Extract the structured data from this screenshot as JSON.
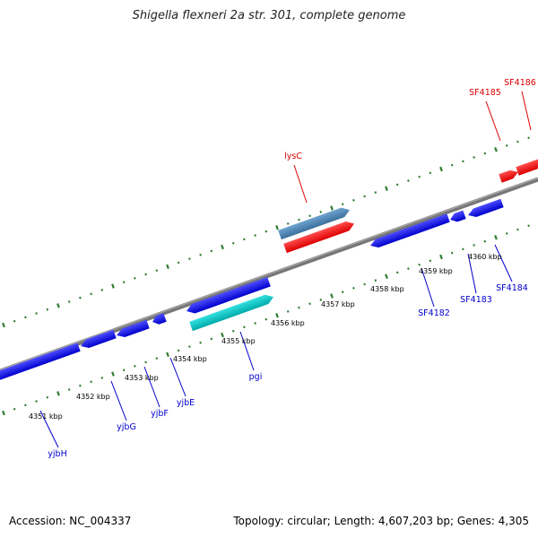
{
  "title": "Shigella flexneri 2a str. 301, complete genome",
  "footer": {
    "accession": "Accession: NC_004337",
    "topology": "Topology: circular; Length: 4,607,203 bp; Genes: 4,305"
  },
  "colors": {
    "forward_cds": "#ff0000",
    "reverse_cds": "#0000ee",
    "rna_or_other": "#00cccc",
    "highlight": "#4682b4",
    "backbone": "#888888",
    "ticks": "#2e7d32",
    "label_fwd": "#dd0000",
    "label_rev": "#0000cc"
  },
  "ticks": [
    {
      "label": "4351 kbp"
    },
    {
      "label": "4352 kbp"
    },
    {
      "label": "4353 kbp"
    },
    {
      "label": "4354 kbp"
    },
    {
      "label": "4355 kbp"
    },
    {
      "label": "4356 kbp"
    },
    {
      "label": "4357 kbp"
    },
    {
      "label": "4358 kbp"
    },
    {
      "label": "4359 kbp"
    },
    {
      "label": "4360 kbp"
    }
  ],
  "gene_labels": [
    {
      "name": "yjbH",
      "strand": "reverse"
    },
    {
      "name": "yjbG",
      "strand": "reverse"
    },
    {
      "name": "yjbF",
      "strand": "reverse"
    },
    {
      "name": "yjbE",
      "strand": "reverse"
    },
    {
      "name": "pgi",
      "strand": "reverse"
    },
    {
      "name": "SF4182",
      "strand": "reverse"
    },
    {
      "name": "SF4183",
      "strand": "reverse"
    },
    {
      "name": "SF4184",
      "strand": "reverse"
    },
    {
      "name": "lysC",
      "strand": "forward"
    },
    {
      "name": "SF4185",
      "strand": "forward"
    },
    {
      "name": "SF4186",
      "strand": "forward"
    }
  ]
}
